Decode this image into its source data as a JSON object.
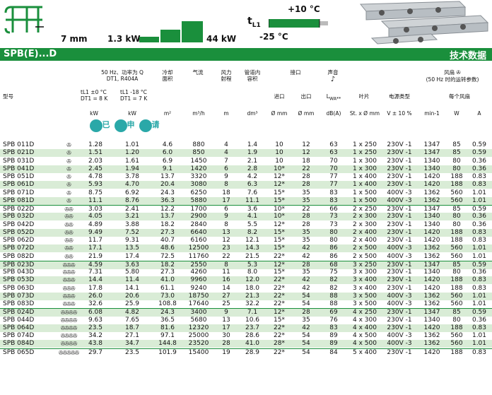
{
  "header": {
    "fin_spacing": "7 mm",
    "capacity_min": "1.3 kW",
    "capacity_max": "44 kW",
    "temp_label": "t",
    "temp_sub": "L1",
    "temp_max": "+10 °C",
    "temp_min": "-25 °C"
  },
  "band": {
    "series": "SPB(E)...D",
    "title": "技术数据"
  },
  "columns": {
    "cond": "50 Hz、功率为 Q\nDT1, R404A",
    "model": "型号",
    "c1a": "t",
    "c1b": "L1 ±0 °C\nDT1 = 8 K",
    "c2b": "L1 -18 °C\nDT1 = 7 K",
    "area": "冷却\n面积",
    "air": "气流",
    "throw": "风力\n射程",
    "vol": "管道内\n容积",
    "conn": "接口",
    "in": "进口",
    "out": "出口",
    "noise": "声音",
    "lwa": "L",
    "lwa_sub": "WA**",
    "blade": "叶片",
    "elec": "电源类型",
    "fan": "风扇",
    "fan_sub": "(50 Hz 时的运转参数)",
    "perfan": "每个风扇",
    "u_kw1": "kW",
    "u_kw2": "kW",
    "u_area": "m²",
    "u_air": "m³/h",
    "u_m": "m",
    "u_vol": "dm³",
    "u_in": "Ø mm",
    "u_out": "Ø mm",
    "u_db": "dB(A)",
    "u_blade": "St. x Ø mm",
    "u_v": "V ± 10 %",
    "u_rpm": "min-1",
    "u_w": "W",
    "u_a": "A",
    "badges": [
      "已",
      "申",
      "请"
    ]
  },
  "rows": [
    [
      "SPB 011D",
      "✇",
      "1.28",
      "1.01",
      "4.6",
      "880",
      "4",
      "1.4",
      "10",
      "12",
      "63",
      "1 x 250",
      "230V -1",
      "1347",
      "85",
      "0.59"
    ],
    [
      "SPB 021D",
      "✇",
      "1.51",
      "1.20",
      "6.0",
      "850",
      "4",
      "1.9",
      "10",
      "12",
      "63",
      "1 x 250",
      "230V -1",
      "1347",
      "85",
      "0.59"
    ],
    [
      "SPB 031D",
      "✇",
      "2.03",
      "1.61",
      "6.9",
      "1450",
      "7",
      "2.1",
      "10",
      "18",
      "70",
      "1 x 300",
      "230V -1",
      "1340",
      "80",
      "0.36"
    ],
    [
      "SPB 041D",
      "✇",
      "2.45",
      "1.94",
      "9.1",
      "1420",
      "6",
      "2.8",
      "10*",
      "22",
      "70",
      "1 x 300",
      "230V -1",
      "1340",
      "80",
      "0.36"
    ],
    [
      "SPB 051D",
      "✇",
      "4.78",
      "3.78",
      "13.7",
      "3320",
      "9",
      "4.2",
      "12*",
      "28",
      "77",
      "1 x 400",
      "230V -1",
      "1420",
      "188",
      "0.83"
    ],
    [
      "SPB 061D",
      "✇",
      "5.93",
      "4.70",
      "20.4",
      "3080",
      "8",
      "6.3",
      "12*",
      "28",
      "77",
      "1 x 400",
      "230V -1",
      "1420",
      "188",
      "0.83"
    ],
    [
      "SPB 071D",
      "✇",
      "8.75",
      "6.92",
      "24.3",
      "6250",
      "18",
      "7.6",
      "15*",
      "35",
      "83",
      "1 x 500",
      "400V -3",
      "1362",
      "560",
      "1.01"
    ],
    [
      "SPB 081D",
      "✇",
      "11.1",
      "8.76",
      "36.3",
      "5880",
      "17",
      "11.1",
      "15*",
      "35",
      "83",
      "1 x 500",
      "400V -3",
      "1362",
      "560",
      "1.01"
    ],
    [
      "SPB 022D",
      "✇✇",
      "3.03",
      "2.41",
      "12.2",
      "1700",
      "6",
      "3.6",
      "10*",
      "22",
      "66",
      "2 x 250",
      "230V -1",
      "1347",
      "85",
      "0.59"
    ],
    [
      "SPB 032D",
      "✇✇",
      "4.05",
      "3.21",
      "13.7",
      "2900",
      "9",
      "4.1",
      "10*",
      "28",
      "73",
      "2 x 300",
      "230V -1",
      "1340",
      "80",
      "0.36"
    ],
    [
      "SPB 042D",
      "✇✇",
      "4.89",
      "3.88",
      "18.2",
      "2840",
      "8",
      "5.5",
      "12*",
      "28",
      "73",
      "2 x 300",
      "230V -1",
      "1340",
      "80",
      "0.36"
    ],
    [
      "SPB 052D",
      "✇✇",
      "9.49",
      "7.52",
      "27.3",
      "6640",
      "13",
      "8.2",
      "15*",
      "35",
      "80",
      "2 x 400",
      "230V -1",
      "1420",
      "188",
      "0.83"
    ],
    [
      "SPB 062D",
      "✇✇",
      "11.7",
      "9.31",
      "40.7",
      "6160",
      "12",
      "12.1",
      "15*",
      "35",
      "80",
      "2 x 400",
      "230V -1",
      "1420",
      "188",
      "0.83"
    ],
    [
      "SPB 072D",
      "✇✇",
      "17.1",
      "13.5",
      "48.6",
      "12500",
      "23",
      "14.3",
      "15*",
      "42",
      "86",
      "2 x 500",
      "400V -3",
      "1362",
      "560",
      "1.01"
    ],
    [
      "SPB 082D",
      "✇✇",
      "21.9",
      "17.4",
      "72.5",
      "11760",
      "22",
      "21.5",
      "22*",
      "42",
      "86",
      "2 x 500",
      "400V -3",
      "1362",
      "560",
      "1.01"
    ],
    [
      "SPB 023D",
      "✇✇✇",
      "4.59",
      "3.63",
      "18.2",
      "2550",
      "8",
      "5.3",
      "12*",
      "28",
      "68",
      "3 x 250",
      "230V -1",
      "1347",
      "85",
      "0.59"
    ],
    [
      "SPB 043D",
      "✇✇✇",
      "7.31",
      "5.80",
      "27.3",
      "4260",
      "11",
      "8.0",
      "15*",
      "35",
      "75",
      "3 x 300",
      "230V -1",
      "1340",
      "80",
      "0.36"
    ],
    [
      "SPB 053D",
      "✇✇✇",
      "14.4",
      "11.4",
      "41.0",
      "9960",
      "16",
      "12.0",
      "22*",
      "42",
      "82",
      "3 x 400",
      "230V -1",
      "1420",
      "188",
      "0.83"
    ],
    [
      "SPB 063D",
      "✇✇✇",
      "17.8",
      "14.1",
      "61.1",
      "9240",
      "14",
      "18.0",
      "22*",
      "42",
      "82",
      "3 x 400",
      "230V -1",
      "1420",
      "188",
      "0.83"
    ],
    [
      "SPB 073D",
      "✇✇✇",
      "26.0",
      "20.6",
      "73.0",
      "18750",
      "27",
      "21.3",
      "22*",
      "54",
      "88",
      "3 x 500",
      "400V -3",
      "1362",
      "560",
      "1.01"
    ],
    [
      "SPB 083D",
      "✇✇✇",
      "32.6",
      "25.9",
      "108.8",
      "17640",
      "25",
      "32.2",
      "22*",
      "54",
      "88",
      "3 x 500",
      "400V -3",
      "1362",
      "560",
      "1.01"
    ],
    [
      "SPB 024D",
      "✇✇✇✇",
      "6.08",
      "4.82",
      "24.3",
      "3400",
      "9",
      "7.1",
      "12*",
      "28",
      "69",
      "4 x 250",
      "230V -1",
      "1347",
      "85",
      "0.59"
    ],
    [
      "SPB 044D",
      "✇✇✇✇",
      "9.63",
      "7.65",
      "36.5",
      "5680",
      "13",
      "10.6",
      "15*",
      "35",
      "76",
      "4 x 300",
      "230V -1",
      "1340",
      "80",
      "0.36"
    ],
    [
      "SPB 064D",
      "✇✇✇✇",
      "23.5",
      "18.7",
      "81.6",
      "12320",
      "17",
      "23.7",
      "22*",
      "42",
      "83",
      "4 x 400",
      "230V -1",
      "1420",
      "188",
      "0.83"
    ],
    [
      "SPB 074D",
      "✇✇✇✇",
      "34.2",
      "27.1",
      "97.1",
      "25000",
      "30",
      "28.6",
      "22*",
      "54",
      "89",
      "4 x 500",
      "400V -3",
      "1362",
      "560",
      "1.01"
    ],
    [
      "SPB 084D",
      "✇✇✇✇",
      "43.8",
      "34.7",
      "144.8",
      "23520",
      "28",
      "41.0",
      "28*",
      "54",
      "89",
      "4 x 500",
      "400V -3",
      "1362",
      "560",
      "1.01"
    ],
    [
      "SPB 065D",
      "✇✇✇✇✇",
      "29.7",
      "23.5",
      "101.9",
      "15400",
      "19",
      "28.9",
      "22*",
      "54",
      "84",
      "5 x 400",
      "230V -1",
      "1420",
      "188",
      "0.83"
    ]
  ],
  "colors": {
    "brand_green": "#1a8f3c",
    "row_tint": "#d9ecd6"
  }
}
